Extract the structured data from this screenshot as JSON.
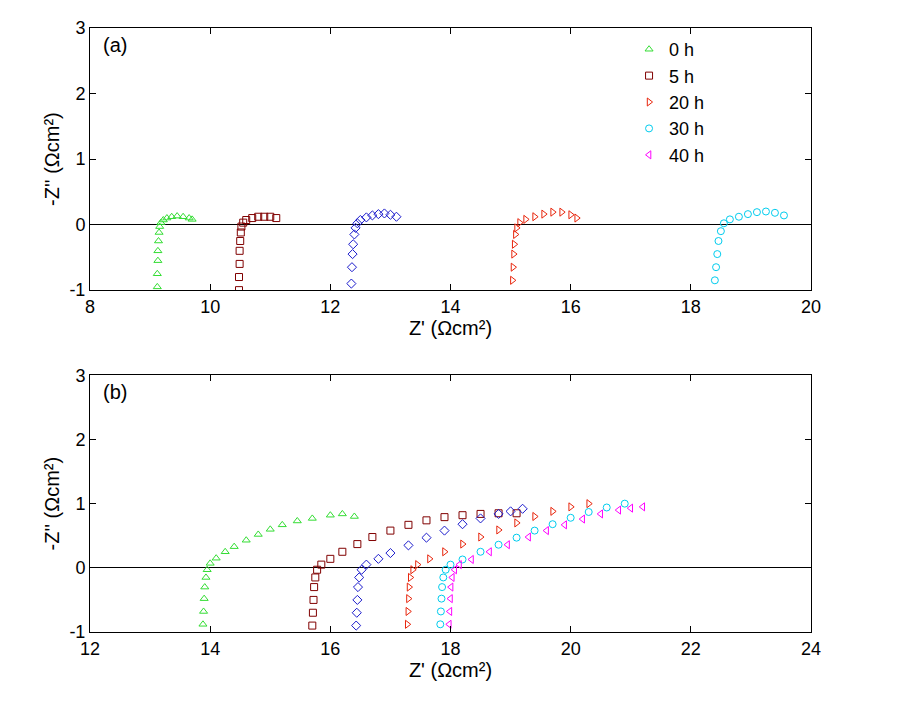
{
  "chart_data": [
    {
      "type": "scatter",
      "title": "(a)",
      "x_label": "Z' (Ωcm²)",
      "y_label": "-Z'' (Ωcm²)",
      "xlim": [
        8,
        20
      ],
      "xticks": [
        8,
        10,
        12,
        14,
        16,
        18,
        20
      ],
      "ylim": [
        -1,
        3
      ],
      "yticks": [
        -1,
        0,
        1,
        2,
        3
      ],
      "grid": false,
      "legend": "top right",
      "series": [
        {
          "name": "0 h",
          "color": "#33dd33",
          "marker": "triangle-up",
          "x": [
            9.12,
            9.12,
            9.13,
            9.13,
            9.14,
            9.15,
            9.16,
            9.18,
            9.22,
            9.28,
            9.36,
            9.45,
            9.55,
            9.65,
            9.7
          ],
          "values": [
            -0.95,
            -0.75,
            -0.55,
            -0.4,
            -0.25,
            -0.12,
            -0.03,
            0.03,
            0.07,
            0.1,
            0.12,
            0.13,
            0.12,
            0.1,
            0.08
          ]
        },
        {
          "name": "5 h",
          "color": "#800000",
          "marker": "square",
          "x": [
            10.48,
            10.48,
            10.49,
            10.49,
            10.5,
            10.51,
            10.52,
            10.55,
            10.6,
            10.7,
            10.8,
            10.9,
            11.0,
            11.1
          ],
          "values": [
            -1.0,
            -0.8,
            -0.6,
            -0.4,
            -0.25,
            -0.12,
            -0.03,
            0.03,
            0.07,
            0.1,
            0.12,
            0.12,
            0.12,
            0.1
          ]
        },
        {
          "color": "#1a1acc",
          "marker": "diamond",
          "x": [
            12.35,
            12.36,
            12.37,
            12.38,
            12.4,
            12.42,
            12.45,
            12.5,
            12.6,
            12.7,
            12.8,
            12.9,
            13.0,
            13.1
          ],
          "values": [
            -0.9,
            -0.65,
            -0.45,
            -0.3,
            -0.15,
            -0.05,
            0.02,
            0.07,
            0.11,
            0.14,
            0.16,
            0.17,
            0.15,
            0.12
          ]
        },
        {
          "name": "20 h",
          "color": "#e8250c",
          "marker": "triangle-right",
          "x": [
            15.03,
            15.04,
            15.05,
            15.06,
            15.08,
            15.1,
            15.15,
            15.25,
            15.4,
            15.55,
            15.7,
            15.85,
            16.0,
            16.1
          ],
          "values": [
            -0.85,
            -0.65,
            -0.45,
            -0.3,
            -0.15,
            -0.05,
            0.03,
            0.08,
            0.12,
            0.16,
            0.19,
            0.19,
            0.15,
            0.1
          ]
        },
        {
          "name": "30 h",
          "color": "#00ccee",
          "marker": "circle",
          "x": [
            18.4,
            18.42,
            18.44,
            18.46,
            18.5,
            18.55,
            18.65,
            18.8,
            18.95,
            19.1,
            19.25,
            19.4,
            19.55
          ],
          "values": [
            -0.85,
            -0.65,
            -0.45,
            -0.25,
            -0.1,
            0.02,
            0.08,
            0.12,
            0.16,
            0.19,
            0.2,
            0.18,
            0.14
          ]
        },
        {
          "name": "40 h",
          "color": "#ff00ff",
          "marker": "triangle-left",
          "x": [],
          "values": []
        }
      ]
    },
    {
      "type": "scatter",
      "title": "(b)",
      "x_label": "Z' (Ωcm²)",
      "y_label": "-Z'' (Ωcm²)",
      "xlim": [
        12,
        24
      ],
      "xticks": [
        12,
        14,
        16,
        18,
        20,
        22,
        24
      ],
      "ylim": [
        -1,
        3
      ],
      "yticks": [
        -1,
        0,
        1,
        2,
        3
      ],
      "grid": false,
      "series": [
        {
          "color": "#33dd33",
          "marker": "triangle-up",
          "x": [
            13.88,
            13.89,
            13.9,
            13.91,
            13.93,
            13.95,
            14.0,
            14.1,
            14.25,
            14.4,
            14.6,
            14.8,
            15.0,
            15.2,
            15.45,
            15.7,
            16.0,
            16.2,
            16.4
          ],
          "values": [
            -0.88,
            -0.68,
            -0.48,
            -0.3,
            -0.15,
            -0.03,
            0.07,
            0.15,
            0.25,
            0.33,
            0.43,
            0.52,
            0.6,
            0.67,
            0.73,
            0.77,
            0.82,
            0.84,
            0.8
          ]
        },
        {
          "color": "#800000",
          "marker": "square",
          "x": [
            15.7,
            15.71,
            15.72,
            15.73,
            15.75,
            15.78,
            15.85,
            16.0,
            16.2,
            16.45,
            16.7,
            17.0,
            17.3,
            17.6,
            17.9,
            18.2,
            18.5,
            18.8,
            19.1
          ],
          "values": [
            -0.9,
            -0.7,
            -0.5,
            -0.3,
            -0.15,
            -0.03,
            0.05,
            0.14,
            0.25,
            0.37,
            0.48,
            0.58,
            0.67,
            0.74,
            0.79,
            0.82,
            0.84,
            0.85,
            0.85
          ]
        },
        {
          "color": "#1a1acc",
          "marker": "diamond",
          "x": [
            16.43,
            16.44,
            16.45,
            16.46,
            16.48,
            16.52,
            16.6,
            16.8,
            17.0,
            17.3,
            17.6,
            17.9,
            18.2,
            18.5,
            18.8,
            19.0,
            19.2
          ],
          "values": [
            -0.9,
            -0.7,
            -0.5,
            -0.3,
            -0.15,
            -0.03,
            0.05,
            0.14,
            0.23,
            0.35,
            0.47,
            0.58,
            0.68,
            0.77,
            0.84,
            0.88,
            0.92
          ]
        },
        {
          "color": "#e8250c",
          "marker": "triangle-right",
          "x": [
            17.28,
            17.29,
            17.3,
            17.31,
            17.33,
            17.37,
            17.45,
            17.65,
            17.9,
            18.2,
            18.5,
            18.8,
            19.1,
            19.4,
            19.7,
            20.0,
            20.3
          ],
          "values": [
            -0.88,
            -0.68,
            -0.48,
            -0.3,
            -0.15,
            -0.03,
            0.05,
            0.14,
            0.25,
            0.37,
            0.48,
            0.59,
            0.7,
            0.8,
            0.88,
            0.95,
            1.0
          ]
        },
        {
          "color": "#00ccee",
          "marker": "circle",
          "x": [
            17.83,
            17.84,
            17.85,
            17.86,
            17.88,
            17.92,
            18.0,
            18.2,
            18.5,
            18.8,
            19.1,
            19.4,
            19.7,
            20.0,
            20.3,
            20.6,
            20.9
          ],
          "values": [
            -0.88,
            -0.68,
            -0.48,
            -0.3,
            -0.15,
            -0.03,
            0.05,
            0.13,
            0.25,
            0.36,
            0.47,
            0.58,
            0.68,
            0.78,
            0.87,
            0.94,
            1.0
          ]
        },
        {
          "color": "#ff00ff",
          "marker": "triangle-left",
          "x": [
            17.98,
            17.99,
            18.0,
            18.01,
            18.03,
            18.07,
            18.15,
            18.35,
            18.65,
            18.95,
            19.3,
            19.6,
            19.9,
            20.2,
            20.5,
            20.8,
            21.0,
            21.2
          ],
          "values": [
            -0.88,
            -0.68,
            -0.48,
            -0.3,
            -0.15,
            -0.03,
            0.05,
            0.13,
            0.25,
            0.36,
            0.48,
            0.58,
            0.67,
            0.76,
            0.84,
            0.9,
            0.93,
            0.95
          ]
        }
      ]
    }
  ]
}
